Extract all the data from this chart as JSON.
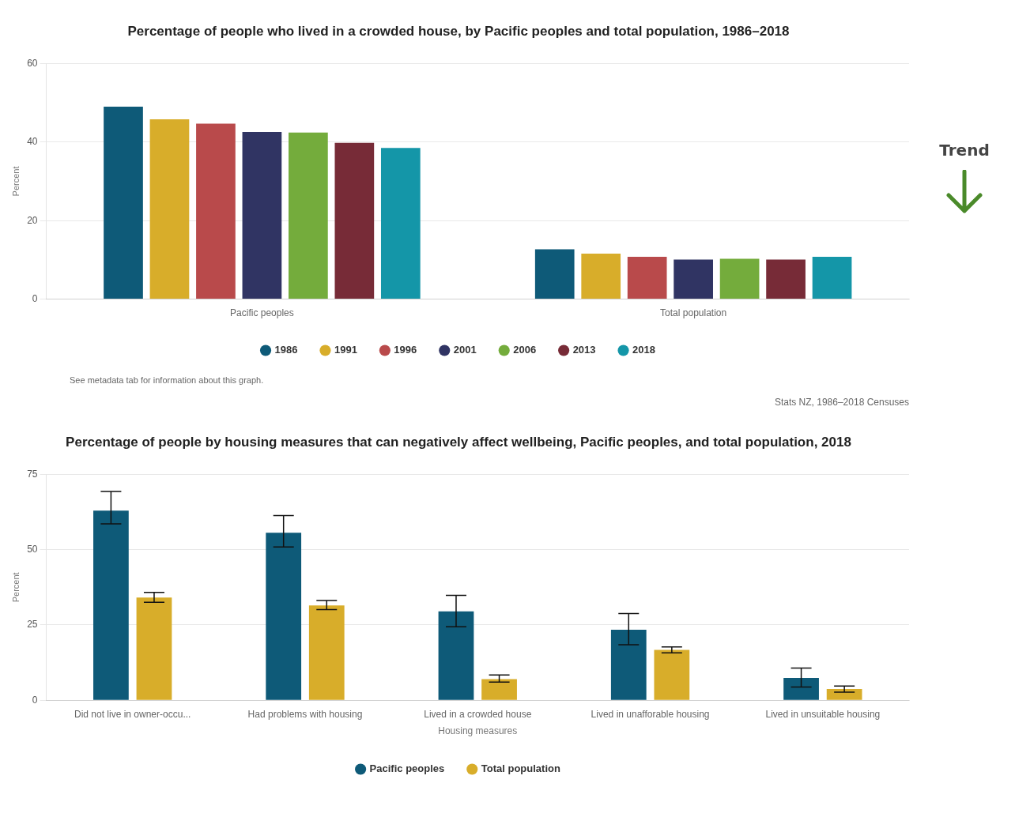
{
  "chart_data": [
    {
      "type": "bar",
      "title": "Percentage of people who lived in a crowded house, by Pacific peoples and total population, 1986–2018",
      "ylabel": "Percent",
      "categories": [
        "Pacific peoples",
        "Total population"
      ],
      "series": [
        {
          "name": "1986",
          "color": "#0e5a78",
          "values": [
            49.0,
            12.7
          ]
        },
        {
          "name": "1991",
          "color": "#d8ad2a",
          "values": [
            45.8,
            11.6
          ]
        },
        {
          "name": "1996",
          "color": "#b94a4b",
          "values": [
            44.7,
            10.8
          ]
        },
        {
          "name": "2001",
          "color": "#303463",
          "values": [
            42.6,
            10.1
          ]
        },
        {
          "name": "2006",
          "color": "#74ac3c",
          "values": [
            42.4,
            10.3
          ]
        },
        {
          "name": "2013",
          "color": "#772b37",
          "values": [
            39.8,
            10.1
          ]
        },
        {
          "name": "2018",
          "color": "#1496a8",
          "values": [
            38.5,
            10.8
          ]
        }
      ],
      "ylim": [
        0,
        60
      ],
      "yticks": [
        0,
        20,
        40,
        60
      ],
      "grid": "y",
      "legend": "bottom",
      "annotations": [
        "See metadata tab for information about this graph.",
        "Stats NZ, 1986–2018 Censuses",
        "Trend"
      ]
    },
    {
      "type": "bar",
      "title": "Percentage of people by housing measures that can negatively affect wellbeing, Pacific peoples, and total population, 2018",
      "ylabel": "Percent",
      "xlabel": "Housing measures",
      "categories": [
        "Did not live in owner-occu...",
        "Had problems with housing",
        "Lived in a crowded house",
        "Lived in unafforable housing",
        "Lived in unsuitable housing"
      ],
      "series": [
        {
          "name": "Pacific peoples",
          "color": "#0e5a78",
          "values": [
            63.0,
            55.6,
            29.5,
            23.4,
            7.4
          ],
          "errors": [
            [
              58.6,
              69.3
            ],
            [
              50.9,
              61.3
            ],
            [
              24.4,
              34.8
            ],
            [
              18.4,
              28.8
            ],
            [
              4.4,
              10.7
            ]
          ]
        },
        {
          "name": "Total population",
          "color": "#d8ad2a",
          "values": [
            34.1,
            31.5,
            7.0,
            16.7,
            3.7
          ],
          "errors": [
            [
              32.5,
              35.8
            ],
            [
              30.1,
              33.1
            ],
            [
              6.0,
              8.4
            ],
            [
              15.7,
              17.7
            ],
            [
              2.7,
              4.7
            ]
          ]
        }
      ],
      "ylim": [
        0,
        75
      ],
      "yticks": [
        0,
        25,
        50,
        75
      ],
      "grid": "y",
      "legend": "bottom"
    }
  ]
}
